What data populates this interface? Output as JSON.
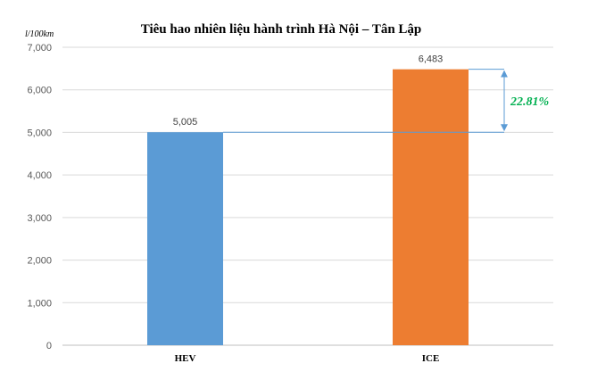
{
  "chart_data": {
    "type": "bar",
    "title": "Tiêu hao nhiên liệu hành trình Hà Nội – Tân Lập",
    "ylabel": "l/100km",
    "xlabel": "",
    "categories": [
      "HEV",
      "ICE"
    ],
    "values": [
      5.005,
      6.483
    ],
    "value_labels": [
      "5,005",
      "6,483"
    ],
    "colors": [
      "#5b9bd5",
      "#ed7d31"
    ],
    "ylim": [
      0,
      7
    ],
    "yticks": [
      0,
      1,
      2,
      3,
      4,
      5,
      6,
      7
    ],
    "ytick_labels": [
      "0",
      "1,000",
      "2,000",
      "3,000",
      "4,000",
      "5,000",
      "6,000",
      "7,000"
    ],
    "grid": true,
    "legend": "none",
    "annotation": {
      "text": "22.81%",
      "from_value": 5.005,
      "to_value": 6.483,
      "line_color": "#5b9bd5",
      "text_color": "#00b050"
    }
  }
}
